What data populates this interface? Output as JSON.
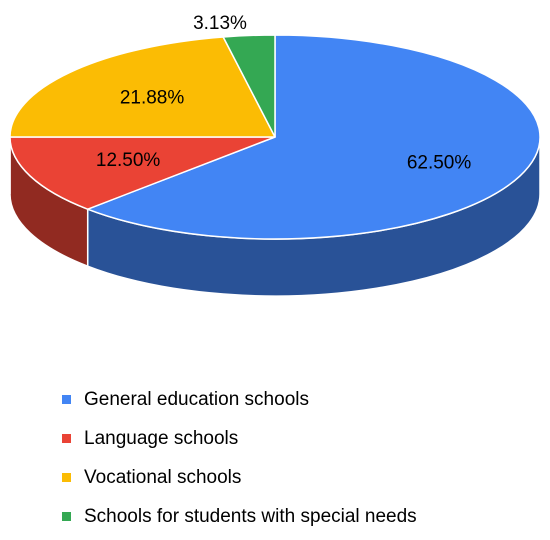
{
  "chart_data": {
    "type": "pie",
    "categories": [
      "General education schools",
      "Language schools",
      "Vocational schools",
      "Schools for students with special needs"
    ],
    "values": [
      62.5,
      12.5,
      21.88,
      3.13
    ],
    "data_labels": [
      "62.50%",
      "12.50%",
      "21.88%",
      "3.13%"
    ],
    "colors": [
      "#4285F4",
      "#EA4335",
      "#FBBC04",
      "#34A853"
    ],
    "legend_position": "bottom",
    "style": "3d"
  }
}
